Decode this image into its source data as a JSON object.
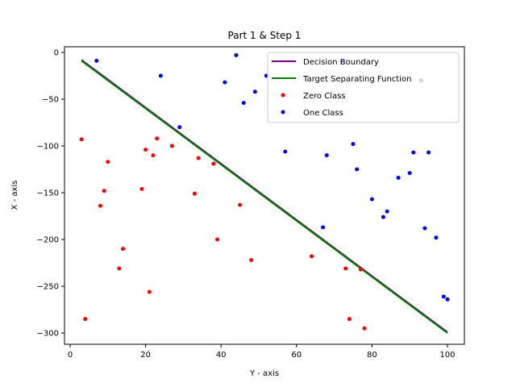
{
  "chart_data": {
    "type": "scatter",
    "title": "Part 1 & Step 1",
    "xlabel": "Y - axis",
    "ylabel": "X - axis",
    "xlim": [
      -1.5,
      104.5
    ],
    "ylim": [
      -312,
      6
    ],
    "xticks": [
      0,
      20,
      40,
      60,
      80,
      100
    ],
    "yticks": [
      0,
      -50,
      -100,
      -150,
      -200,
      -250,
      -300
    ],
    "xtick_labels": [
      "0",
      "20",
      "40",
      "60",
      "80",
      "100"
    ],
    "ytick_labels": [
      "0",
      "−50",
      "−100",
      "−150",
      "−200",
      "−250",
      "−300"
    ],
    "legend_position": "top-right",
    "lines": [
      {
        "name": "Decision Boundary",
        "color": "#800080",
        "x": [
          3,
          100
        ],
        "y": [
          -8,
          -299
        ]
      },
      {
        "name": "Target Separating Function",
        "color": "#008000",
        "x": [
          3,
          100
        ],
        "y": [
          -9,
          -300
        ]
      }
    ],
    "series": [
      {
        "name": "Zero Class",
        "color": "#ff0000",
        "points": [
          [
            3,
            -93
          ],
          [
            4,
            -285
          ],
          [
            8,
            -164
          ],
          [
            9,
            -148
          ],
          [
            10,
            -117
          ],
          [
            13,
            -231
          ],
          [
            14,
            -210
          ],
          [
            19,
            -146
          ],
          [
            20,
            -104
          ],
          [
            21,
            -256
          ],
          [
            22,
            -110
          ],
          [
            23,
            -92
          ],
          [
            27,
            -100
          ],
          [
            33,
            -151
          ],
          [
            34,
            -113
          ],
          [
            38,
            -119
          ],
          [
            39,
            -200
          ],
          [
            45,
            -163
          ],
          [
            48,
            -222
          ],
          [
            64,
            -218
          ],
          [
            73,
            -231
          ],
          [
            74,
            -285
          ],
          [
            77,
            -232
          ],
          [
            78,
            -295
          ]
        ]
      },
      {
        "name": "One Class",
        "color": "#0000ff",
        "points": [
          [
            7,
            -9
          ],
          [
            24,
            -25
          ],
          [
            29,
            -80
          ],
          [
            41,
            -32
          ],
          [
            44,
            -3
          ],
          [
            46,
            -54
          ],
          [
            49,
            -42
          ],
          [
            52,
            -25
          ],
          [
            57,
            -106
          ],
          [
            67,
            -187
          ],
          [
            68,
            -110
          ],
          [
            72,
            -10
          ],
          [
            75,
            -98
          ],
          [
            76,
            -125
          ],
          [
            80,
            -157
          ],
          [
            83,
            -176
          ],
          [
            84,
            -170
          ],
          [
            87,
            -134
          ],
          [
            90,
            -129
          ],
          [
            91,
            -107
          ],
          [
            93,
            -30
          ],
          [
            94,
            -188
          ],
          [
            95,
            -107
          ],
          [
            97,
            -198
          ],
          [
            99,
            -261
          ],
          [
            100,
            -264
          ]
        ]
      }
    ]
  }
}
